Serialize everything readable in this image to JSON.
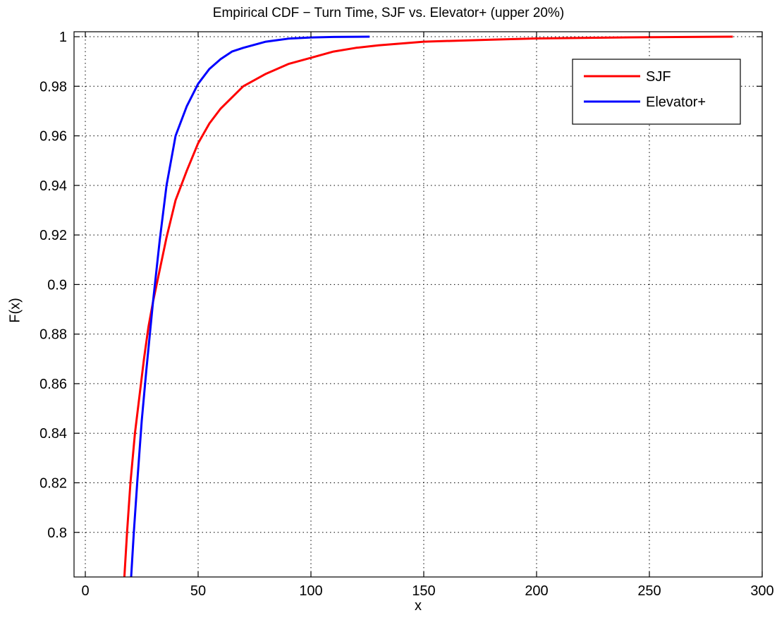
{
  "chart_data": {
    "type": "line",
    "title": "Empirical CDF − Turn Time, SJF vs. Elevator+ (upper 20%)",
    "xlabel": "x",
    "ylabel": "F(x)",
    "xlim": [
      -5,
      300
    ],
    "ylim": [
      0.782,
      1.002
    ],
    "xticks": [
      0,
      50,
      100,
      150,
      200,
      250,
      300
    ],
    "yticks": [
      0.8,
      0.82,
      0.84,
      0.86,
      0.88,
      0.9,
      0.92,
      0.94,
      0.96,
      0.98,
      1
    ],
    "ytick_labels": [
      "0.8",
      "0.82",
      "0.84",
      "0.86",
      "0.88",
      "0.9",
      "0.92",
      "0.94",
      "0.96",
      "0.98",
      "1"
    ],
    "grid": true,
    "legend": "top-right",
    "series": [
      {
        "name": "SJF",
        "color": "#ff0000",
        "x": [
          17.3,
          18.5,
          20,
          22,
          24,
          26,
          28,
          30,
          33,
          36,
          40,
          45,
          50,
          55,
          60,
          70,
          80,
          90,
          100,
          110,
          120,
          130,
          150,
          180,
          200,
          250,
          287
        ],
        "y": [
          0.782,
          0.8,
          0.82,
          0.84,
          0.855,
          0.87,
          0.883,
          0.893,
          0.906,
          0.919,
          0.934,
          0.946,
          0.957,
          0.965,
          0.971,
          0.98,
          0.985,
          0.989,
          0.9915,
          0.994,
          0.9955,
          0.9965,
          0.998,
          0.9988,
          0.9993,
          0.9998,
          1.0
        ]
      },
      {
        "name": "Elevator+",
        "color": "#0000ff",
        "x": [
          20.3,
          21.5,
          23,
          25,
          27,
          30,
          33,
          36,
          40,
          45,
          50,
          55,
          60,
          65,
          70,
          80,
          90,
          100,
          110,
          126
        ],
        "y": [
          0.782,
          0.8,
          0.82,
          0.845,
          0.865,
          0.893,
          0.918,
          0.94,
          0.96,
          0.972,
          0.981,
          0.987,
          0.991,
          0.994,
          0.9955,
          0.998,
          0.9992,
          0.9997,
          0.9999,
          1.0
        ]
      }
    ]
  }
}
